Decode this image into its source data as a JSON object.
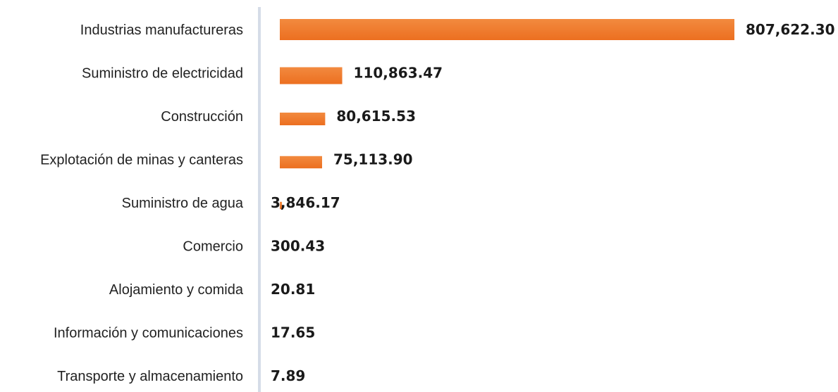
{
  "chart_data": {
    "type": "bar",
    "orientation": "horizontal",
    "categories": [
      "Industrias manufactureras",
      "Suministro de electricidad",
      "Construcción",
      "Explotación de minas y canteras",
      "Suministro de agua",
      "Comercio",
      "Alojamiento y comida",
      "Información y comunicaciones",
      "Transporte y almacenamiento"
    ],
    "values": [
      807622.3,
      110863.47,
      80615.53,
      75113.9,
      3846.17,
      300.43,
      20.81,
      17.65,
      7.89
    ],
    "value_labels": [
      "807,622.30",
      "110,863.47",
      "80,615.53",
      "75,113.90",
      "3,846.17",
      "300.43",
      "20.81",
      "17.65",
      "7.89"
    ],
    "bar_color": "#f07c2e",
    "axis_color": "#d5dce8",
    "grid": false,
    "legend": "none"
  }
}
